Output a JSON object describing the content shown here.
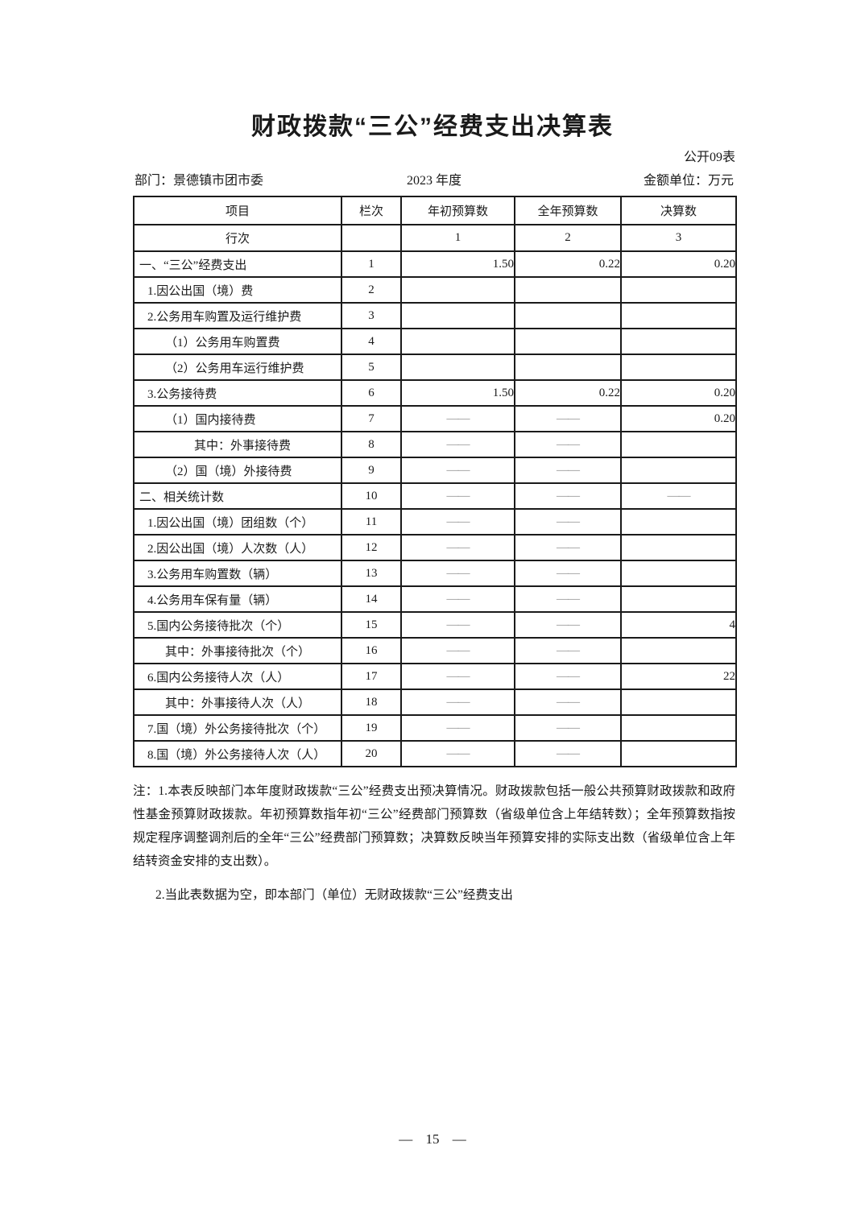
{
  "title": "财政拨款“三公”经费支出决算表",
  "table_code": "公开09表",
  "meta": {
    "department": "部门：景德镇市团市委",
    "year": "2023 年度",
    "unit": "金额单位：万元"
  },
  "table": {
    "headers": [
      "项目",
      "栏次",
      "年初预算数",
      "全年预算数",
      "决算数"
    ],
    "subheader": {
      "label": "行次",
      "col1": "",
      "col2": "1",
      "col3": "2",
      "col4": "3"
    },
    "rows": [
      {
        "item": "一、“三公”经费支出",
        "indent": 0,
        "line": "1",
        "c1": "1.50",
        "c2": "0.22",
        "c3": "0.20"
      },
      {
        "item": "1.因公出国（境）费",
        "indent": 1,
        "line": "2",
        "c1": "",
        "c2": "",
        "c3": ""
      },
      {
        "item": "2.公务用车购置及运行维护费",
        "indent": 1,
        "line": "3",
        "c1": "",
        "c2": "",
        "c3": ""
      },
      {
        "item": "（1）公务用车购置费",
        "indent": 2,
        "line": "4",
        "c1": "",
        "c2": "",
        "c3": ""
      },
      {
        "item": "（2）公务用车运行维护费",
        "indent": 2,
        "line": "5",
        "c1": "",
        "c2": "",
        "c3": ""
      },
      {
        "item": "3.公务接待费",
        "indent": 1,
        "line": "6",
        "c1": "1.50",
        "c2": "0.22",
        "c3": "0.20"
      },
      {
        "item": "（1）国内接待费",
        "indent": 2,
        "line": "7",
        "c1": "——",
        "c2": "——",
        "c3": "0.20"
      },
      {
        "item": "其中：外事接待费",
        "indent": 3,
        "line": "8",
        "c1": "——",
        "c2": "——",
        "c3": ""
      },
      {
        "item": "（2）国（境）外接待费",
        "indent": 2,
        "line": "9",
        "c1": "——",
        "c2": "——",
        "c3": ""
      },
      {
        "item": "二、相关统计数",
        "indent": 0,
        "line": "10",
        "c1": "——",
        "c2": "——",
        "c3": "——"
      },
      {
        "item": "1.因公出国（境）团组数（个）",
        "indent": 1,
        "line": "11",
        "c1": "——",
        "c2": "——",
        "c3": ""
      },
      {
        "item": "2.因公出国（境）人次数（人）",
        "indent": 1,
        "line": "12",
        "c1": "——",
        "c2": "——",
        "c3": ""
      },
      {
        "item": "3.公务用车购置数（辆）",
        "indent": 1,
        "line": "13",
        "c1": "——",
        "c2": "——",
        "c3": ""
      },
      {
        "item": "4.公务用车保有量（辆）",
        "indent": 1,
        "line": "14",
        "c1": "——",
        "c2": "——",
        "c3": ""
      },
      {
        "item": "5.国内公务接待批次（个）",
        "indent": 1,
        "line": "15",
        "c1": "——",
        "c2": "——",
        "c3": "4"
      },
      {
        "item": "其中：外事接待批次（个）",
        "indent": 2,
        "line": "16",
        "c1": "——",
        "c2": "——",
        "c3": ""
      },
      {
        "item": "6.国内公务接待人次（人）",
        "indent": 1,
        "line": "17",
        "c1": "——",
        "c2": "——",
        "c3": "22"
      },
      {
        "item": "其中：外事接待人次（人）",
        "indent": 2,
        "line": "18",
        "c1": "——",
        "c2": "——",
        "c3": ""
      },
      {
        "item": "7.国（境）外公务接待批次（个）",
        "indent": 1,
        "line": "19",
        "c1": "——",
        "c2": "——",
        "c3": ""
      },
      {
        "item": "8.国（境）外公务接待人次（人）",
        "indent": 1,
        "line": "20",
        "c1": "——",
        "c2": "——",
        "c3": ""
      }
    ]
  },
  "notes": [
    "注：1.本表反映部门本年度财政拨款“三公”经费支出预决算情况。财政拨款包括一般公共预算财政拨款和政府性基金预算财政拨款。年初预算数指年初“三公”经费部门预算数（省级单位含上年结转数）；全年预算数指按规定程序调整调剂后的全年“三公”经费部门预算数；决算数反映当年预算安排的实际支出数（省级单位含上年结转资金安排的支出数）。",
    "2.当此表数据为空，即本部门（单位）无财政拨款“三公”经费支出"
  ],
  "page_number": "— 15 —"
}
